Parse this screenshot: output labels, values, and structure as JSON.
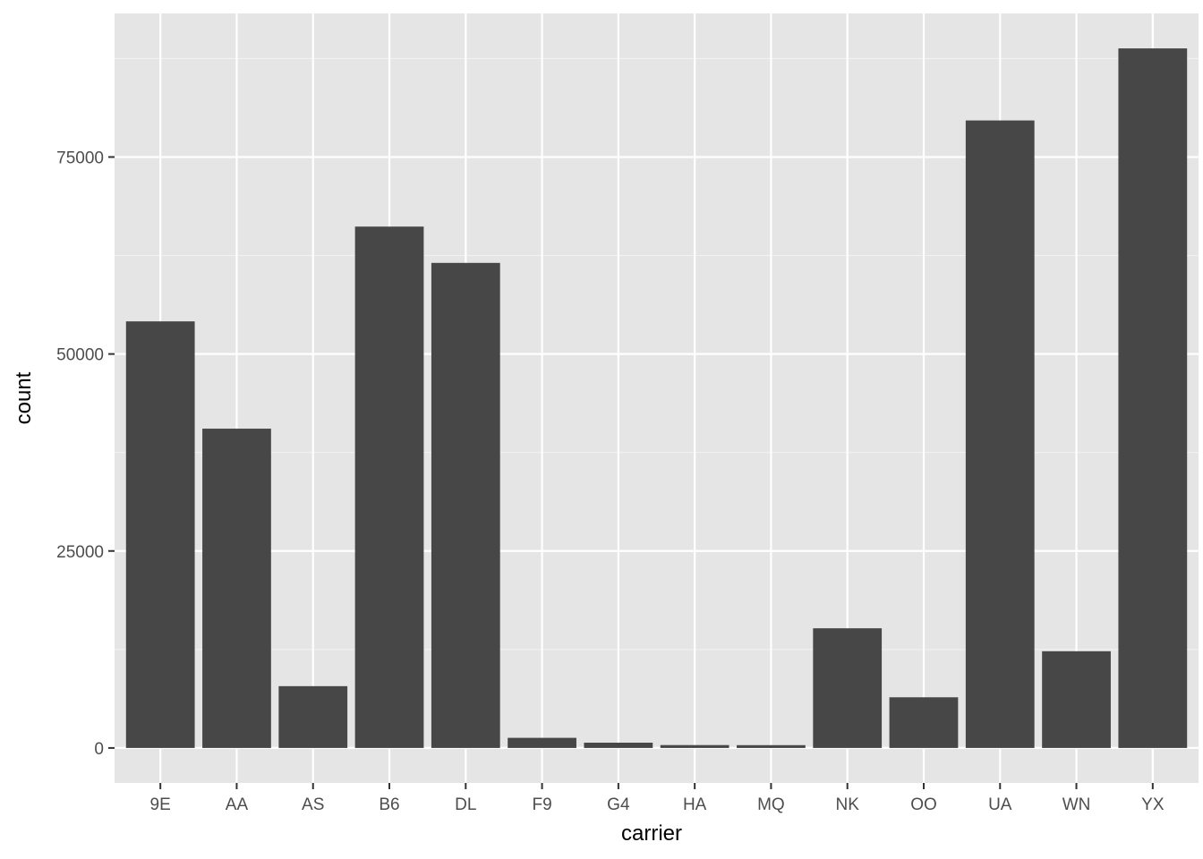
{
  "chart_data": {
    "type": "bar",
    "xlabel": "carrier",
    "ylabel": "count",
    "categories": [
      "9E",
      "AA",
      "AS",
      "B6",
      "DL",
      "F9",
      "G4",
      "HA",
      "MQ",
      "NK",
      "OO",
      "UA",
      "WN",
      "YX"
    ],
    "values": [
      54141,
      40525,
      7843,
      66169,
      61562,
      1286,
      671,
      366,
      357,
      15189,
      6432,
      79641,
      12275,
      88785
    ],
    "ylim": [
      -4439,
      93224
    ],
    "y_ticks": [
      0,
      25000,
      50000,
      75000
    ],
    "y_tick_labels": [
      "0",
      "25000",
      "50000",
      "75000"
    ],
    "grid": true,
    "legend": "none",
    "colors": {
      "panel_background": "#e5e5e5",
      "grid_major": "#ffffff",
      "grid_minor": "#f2f2f2",
      "bar_fill": "#474747",
      "tick_text": "#4d4d4d",
      "tick_mark": "#333333",
      "axis_title": "#000000"
    }
  }
}
